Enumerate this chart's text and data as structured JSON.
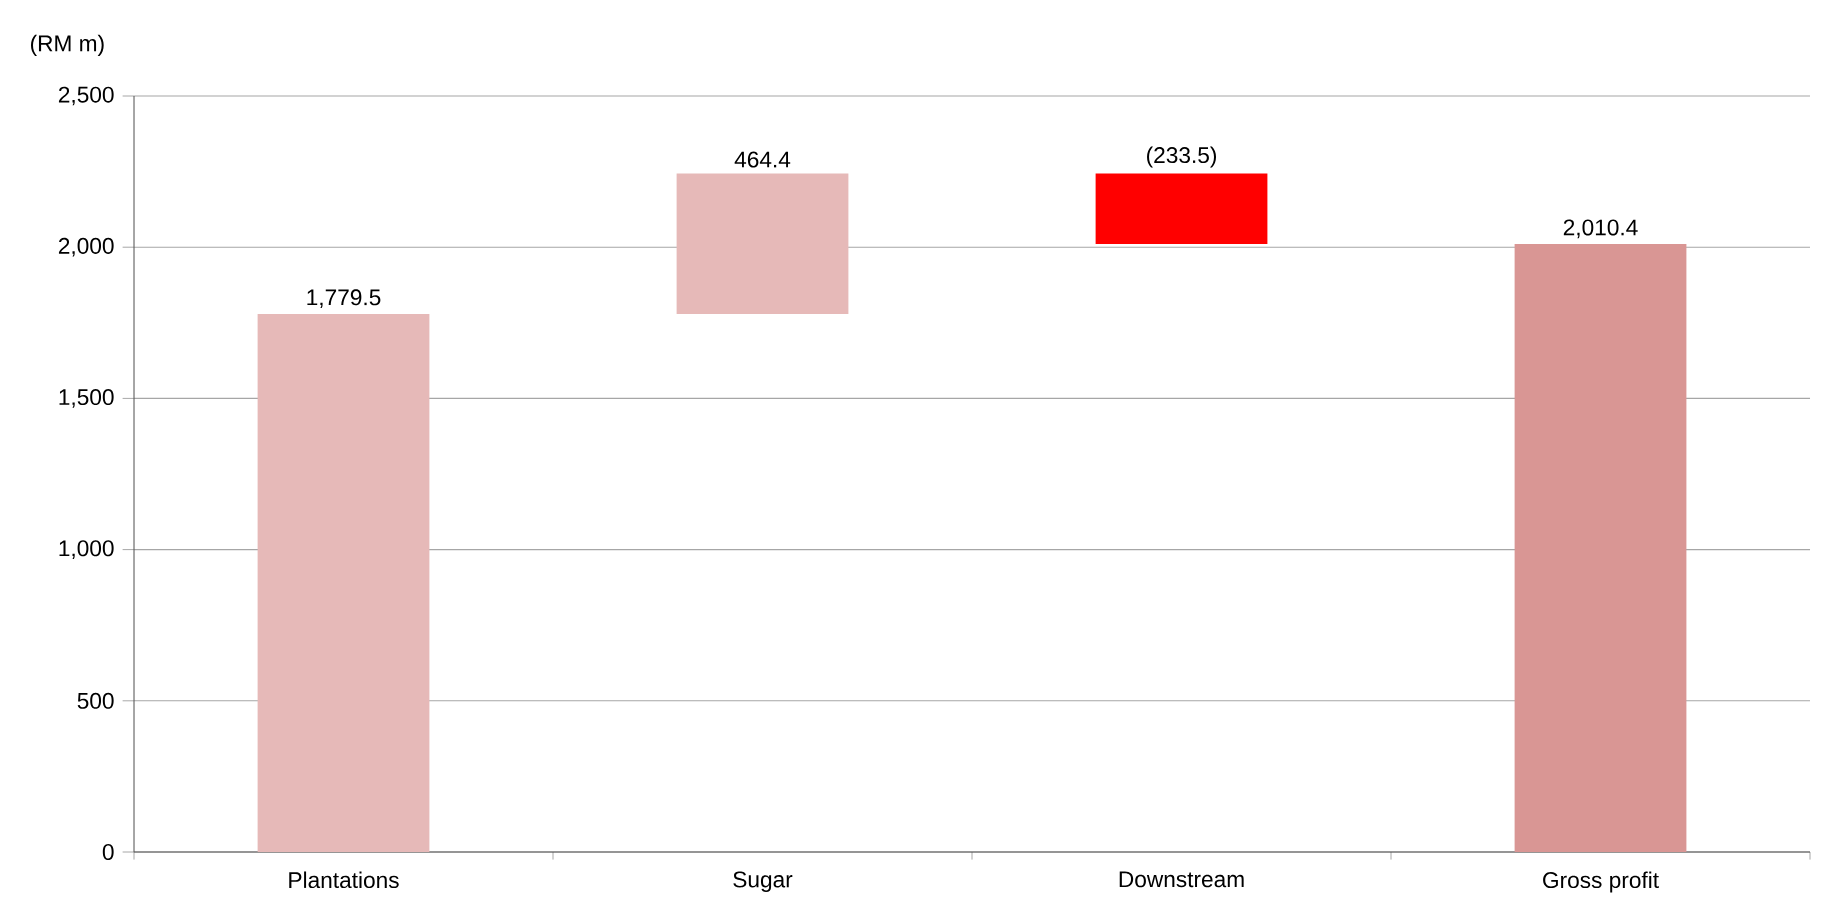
{
  "chart_data": {
    "type": "bar",
    "ylabel": "(RM m)",
    "categories": [
      "Plantations",
      "Sugar",
      "Downstream",
      "Gross profit"
    ],
    "values": [
      1779.5,
      464.4,
      -233.5,
      2010.4
    ],
    "base": [
      0,
      1779.5,
      2243.9,
      0
    ],
    "colors": [
      "#e6b9b8",
      "#e6b9b8",
      "#ff0000",
      "#d99694"
    ],
    "value_labels": [
      "1,779.5",
      "464.4",
      "(233.5)",
      "2,010.4"
    ],
    "ylim": [
      0,
      2500
    ],
    "yticks": [
      {
        "value": 0,
        "label": "0"
      },
      {
        "value": 500,
        "label": "500"
      },
      {
        "value": 1000,
        "label": "1,000"
      },
      {
        "value": 1500,
        "label": "1,500"
      },
      {
        "value": 2000,
        "label": "2,000"
      },
      {
        "value": 2500,
        "label": "2,500"
      }
    ],
    "grid": "y"
  }
}
